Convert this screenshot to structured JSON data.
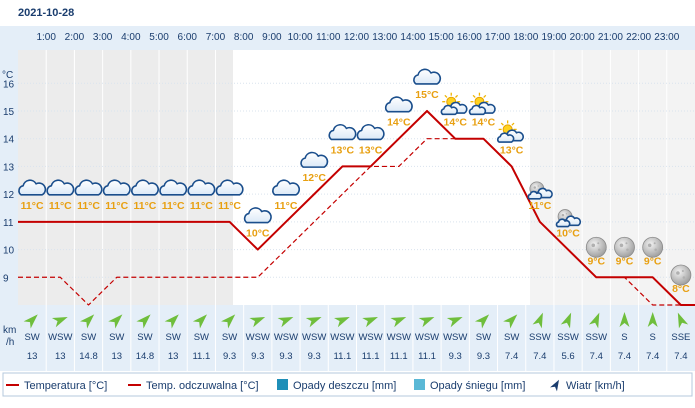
{
  "date": "2021-10-28",
  "y_axis_unit": "°C",
  "wind_unit_top": "km",
  "wind_unit_bottom": "/h",
  "hours": [
    "1:00",
    "2:00",
    "3:00",
    "4:00",
    "5:00",
    "6:00",
    "7:00",
    "8:00",
    "9:00",
    "10:00",
    "11:00",
    "12:00",
    "13:00",
    "14:00",
    "15:00",
    "16:00",
    "17:00",
    "18:00",
    "19:00",
    "20:00",
    "21:00",
    "22:00",
    "23:00"
  ],
  "chart_data": {
    "type": "line",
    "x": [
      0.5,
      1.5,
      2.5,
      3.5,
      4.5,
      5.5,
      6.5,
      7.5,
      8.5,
      9.5,
      10.5,
      11.5,
      12.5,
      13.5,
      14.5,
      15.5,
      16.5,
      17.5,
      18.5,
      19.5,
      20.5,
      21.5,
      22.5,
      23.5
    ],
    "series": [
      {
        "name": "Temperatura [°C]",
        "color": "#c40000",
        "style": "solid",
        "values": [
          11,
          11,
          11,
          11,
          11,
          11,
          11,
          11,
          10,
          11,
          12,
          13,
          13,
          14,
          15,
          14,
          14,
          13,
          11,
          10,
          9,
          9,
          9,
          8
        ]
      },
      {
        "name": "Temp. odczuwalna [°C]",
        "color": "#c40000",
        "style": "dashed",
        "values": [
          9,
          9,
          8,
          9,
          9,
          9,
          9,
          9,
          9,
          10,
          11,
          12,
          13,
          13,
          14,
          14,
          14,
          13,
          11,
          10,
          9,
          9,
          8,
          8
        ]
      }
    ],
    "temp_labels": [
      "11°C",
      "11°C",
      "11°C",
      "11°C",
      "11°C",
      "11°C",
      "11°C",
      "11°C",
      "10°C",
      "11°C",
      "12°C",
      "13°C",
      "13°C",
      "14°C",
      "15°C",
      "14°C",
      "14°C",
      "13°C",
      "11°C",
      "10°C",
      "9°C",
      "9°C",
      "9°C",
      "8°C"
    ],
    "weather_icons": [
      "cloud-icon",
      "cloud-icon",
      "cloud-icon",
      "cloud-icon",
      "cloud-icon",
      "cloud-icon",
      "cloud-icon",
      "cloud-icon",
      "cloud-icon",
      "cloud-icon",
      "cloud-icon",
      "cloud-icon",
      "cloud-icon",
      "cloud-icon",
      "cloud-icon",
      "sun-cloud-icon",
      "sun-cloud-icon",
      "sun-cloud-icon",
      "moon-cloud-icon",
      "moon-cloud-icon",
      "moon-icon",
      "moon-icon",
      "moon-icon",
      "moon-icon"
    ],
    "wind_dir": [
      "SW",
      "WSW",
      "SW",
      "SW",
      "SW",
      "SW",
      "SW",
      "SW",
      "WSW",
      "WSW",
      "WSW",
      "WSW",
      "WSW",
      "WSW",
      "WSW",
      "WSW",
      "SW",
      "SW",
      "SSW",
      "SSW",
      "SSW",
      "S",
      "S",
      "SSE"
    ],
    "wind_speed": [
      "13",
      "13",
      "14.8",
      "13",
      "14.8",
      "13",
      "11.1",
      "9.3",
      "9.3",
      "9.3",
      "9.3",
      "11.1",
      "11.1",
      "11.1",
      "11.1",
      "9.3",
      "9.3",
      "7.4",
      "7.4",
      "5.6",
      "7.4",
      "7.4",
      "7.4",
      "7.4"
    ],
    "yticks": [
      9,
      10,
      11,
      12,
      13,
      14,
      15,
      16
    ],
    "ylim": [
      8,
      17.2
    ],
    "xlim": [
      0,
      24
    ],
    "grid": true,
    "legend_position": "bottom",
    "legend": [
      {
        "label": "Temperatura [°C]",
        "symbol": "solid-line",
        "color": "#c40000"
      },
      {
        "label": "Temp. odczuwalna [°C]",
        "symbol": "solid-line",
        "color": "#c40000"
      },
      {
        "label": "Opady deszczu [mm]",
        "symbol": "square",
        "color": "#1f8fb8"
      },
      {
        "label": "Opady śniegu [mm]",
        "symbol": "square",
        "color": "#5ab8d6"
      },
      {
        "label": "Wiatr [km/h]",
        "symbol": "wind-arrow-icon",
        "color": "#1a3d6e"
      }
    ]
  }
}
